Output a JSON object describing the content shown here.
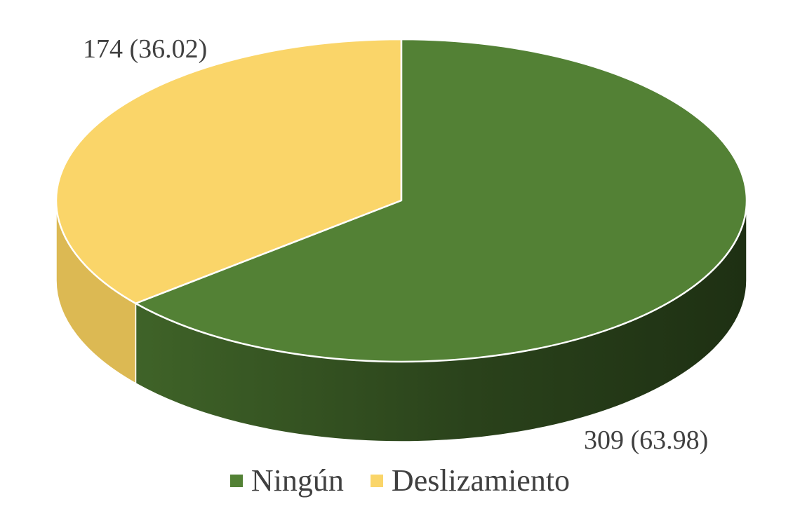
{
  "chart_data": {
    "type": "pie",
    "style": "3d",
    "title": "",
    "legend_position": "bottom",
    "series": [
      {
        "slices": [
          {
            "name": "Ningún",
            "value": 309,
            "percent": 63.98,
            "label": "309 (63.98)",
            "color": "#538135",
            "side_color": "#2f4a1f"
          },
          {
            "name": "Deslizamiento",
            "value": 174,
            "percent": 36.02,
            "label": "174 (36.02)",
            "color": "#fad569",
            "side_color": "#dcb953"
          }
        ]
      }
    ]
  }
}
